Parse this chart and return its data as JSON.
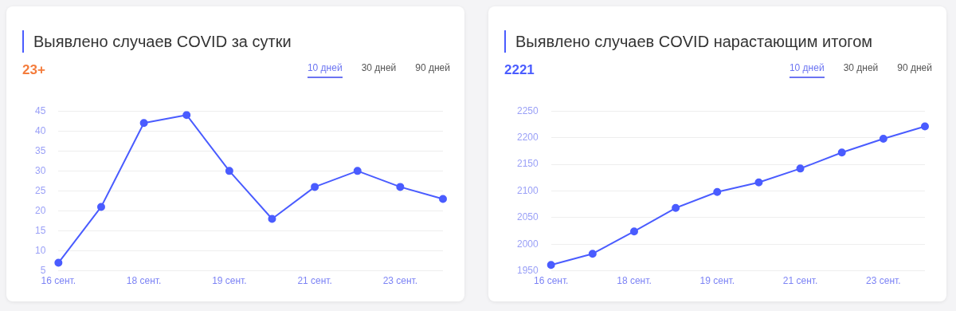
{
  "chart_data": [
    {
      "type": "line",
      "title": "Выявлено случаев COVID за сутки",
      "subtitle": "23+",
      "annotations": [
        "10 дней",
        "30 дней",
        "90 дней"
      ],
      "categories": [
        "16 сент.",
        null,
        "18 сент.",
        null,
        "19 сент.",
        null,
        "21 сент.",
        null,
        "23 сент.",
        null
      ],
      "series": [
        {
          "color": "#4a5cff",
          "values": [
            7,
            21,
            42,
            44,
            30,
            18,
            26,
            30,
            26,
            23
          ]
        }
      ],
      "ylim": [
        5,
        45
      ],
      "yticks": [
        5,
        10,
        15,
        20,
        25,
        30,
        35,
        40,
        45
      ],
      "grid": "y",
      "legend": false,
      "marker": "circle",
      "line_style": "solid"
    },
    {
      "type": "line",
      "title": "Выявлено случаев COVID нарастающим итогом",
      "subtitle": "2221",
      "annotations": [
        "10 дней",
        "30 дней",
        "90 дней"
      ],
      "categories": [
        "16 сент.",
        null,
        "18 сент.",
        null,
        "19 сент.",
        null,
        "21 сент.",
        null,
        "23 сент.",
        null
      ],
      "series": [
        {
          "color": "#4a5cff",
          "values": [
            1961,
            1982,
            2024,
            2068,
            2098,
            2116,
            2142,
            2172,
            2198,
            2221
          ]
        }
      ],
      "ylim": [
        1950,
        2250
      ],
      "yticks": [
        1950,
        2000,
        2050,
        2100,
        2150,
        2200,
        2250
      ],
      "grid": "y",
      "legend": false,
      "marker": "circle",
      "line_style": "solid"
    }
  ]
}
